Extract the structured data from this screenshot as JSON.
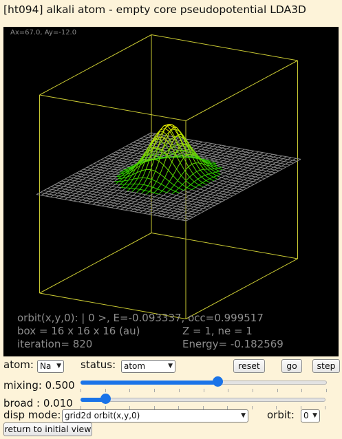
{
  "title": "[ht094] alkali atom - empty core pseudopotential LDA3D",
  "viewport": {
    "coords": "Ax=67.0, Ay=-12.0",
    "orbit_line": "orbit(x,y,0):  | 0 >,  E=-0.093337,  occ=0.999517",
    "box": "box = 16 x 16 x 16 (au)",
    "zne": "Z = 1,  ne = 1",
    "iteration": "iteration= 820",
    "energy": "Energy= -0.182569",
    "colors": {
      "background": "#000000",
      "box": "#c8c832",
      "mesh_low": "#22cc22",
      "mesh_high": "#e8e800",
      "mesh_flat": "#888888"
    }
  },
  "controls": {
    "atom_label": "atom:",
    "atom_value": "Na",
    "status_label": "status:",
    "status_value": "atom",
    "reset": "reset",
    "go": "go",
    "step": "step",
    "mixing_label": "mixing: 0.500",
    "mixing_fraction": 0.555,
    "broad_label": "broad : 0.010",
    "broad_fraction": 0.1,
    "disp_label": "disp mode:",
    "disp_value": "grid2d orbit(x,y,0)",
    "orbit_label": "orbit:",
    "orbit_value": "0",
    "return_button": "return to initial view",
    "accent": "#1a73e8"
  }
}
